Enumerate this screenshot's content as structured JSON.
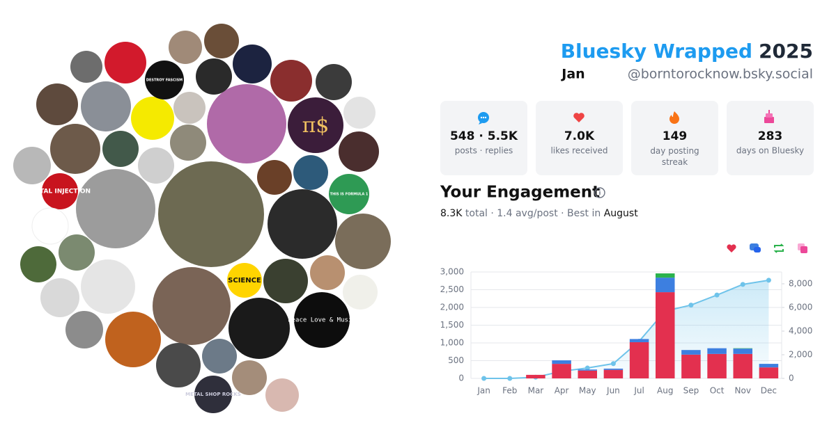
{
  "header": {
    "title": "Bluesky Wrapped",
    "year": "2025",
    "month": "Jan",
    "handle": "@borntorocknow.bsky.social"
  },
  "stats": [
    {
      "value": "548 · 5.5K",
      "label": "posts · replies"
    },
    {
      "value": "7.0K",
      "label": "likes received"
    },
    {
      "value": "149",
      "label": "day posting streak"
    },
    {
      "value": "283",
      "label": "days on Bluesky"
    }
  ],
  "engagement": {
    "title": "Your Engagement",
    "summary": [
      "8.3K",
      " total · 1.4 avg/post · Best in ",
      "August"
    ]
  },
  "avatars": {
    "texts": [
      "METAL INJECTION",
      "SCIENCE",
      "Peace Love & Music",
      "METAL SHOP ROCKS",
      "π$",
      "THIS IS FORMULA 1",
      "DESTROY FASCISM"
    ]
  },
  "chart_data": {
    "type": "bar",
    "stacked": true,
    "categories": [
      "Jan",
      "Feb",
      "Mar",
      "Apr",
      "May",
      "Jun",
      "Jul",
      "Aug",
      "Sep",
      "Oct",
      "Nov",
      "Dec"
    ],
    "series": [
      {
        "color": "#e3304f",
        "values": [
          0,
          0,
          100,
          410,
          220,
          240,
          1020,
          2430,
          670,
          690,
          690,
          310
        ]
      },
      {
        "color": "#3d7fe0",
        "values": [
          0,
          0,
          0,
          100,
          30,
          35,
          90,
          410,
          130,
          160,
          150,
          100
        ]
      },
      {
        "color": "#2bb24c",
        "values": [
          0,
          0,
          0,
          0,
          0,
          0,
          0,
          120,
          0,
          0,
          10,
          0
        ]
      },
      {
        "type": "line",
        "axis": "y2",
        "color": "#6ec3ea",
        "values": [
          0,
          0,
          100,
          600,
          880,
          1250,
          3150,
          5700,
          6200,
          7050,
          7950,
          8300
        ]
      }
    ],
    "ylim": [
      0,
      3000
    ],
    "yticks": [
      0,
      500,
      {
        "value": 1000,
        "label": "1,000"
      },
      {
        "value": 1500,
        "label": "1,500"
      },
      {
        "value": 2000,
        "label": "2,000"
      },
      {
        "value": 2500,
        "label": "2,500"
      },
      {
        "value": 3000,
        "label": "3,000"
      }
    ],
    "y2lim": [
      0,
      9000
    ],
    "y2ticks": [
      0,
      {
        "value": 2000,
        "label": "2,000"
      },
      {
        "value": 4000,
        "label": "4,000"
      },
      {
        "value": 6000,
        "label": "6,000"
      },
      {
        "value": 8000,
        "label": "8,000"
      }
    ],
    "grid": true
  }
}
